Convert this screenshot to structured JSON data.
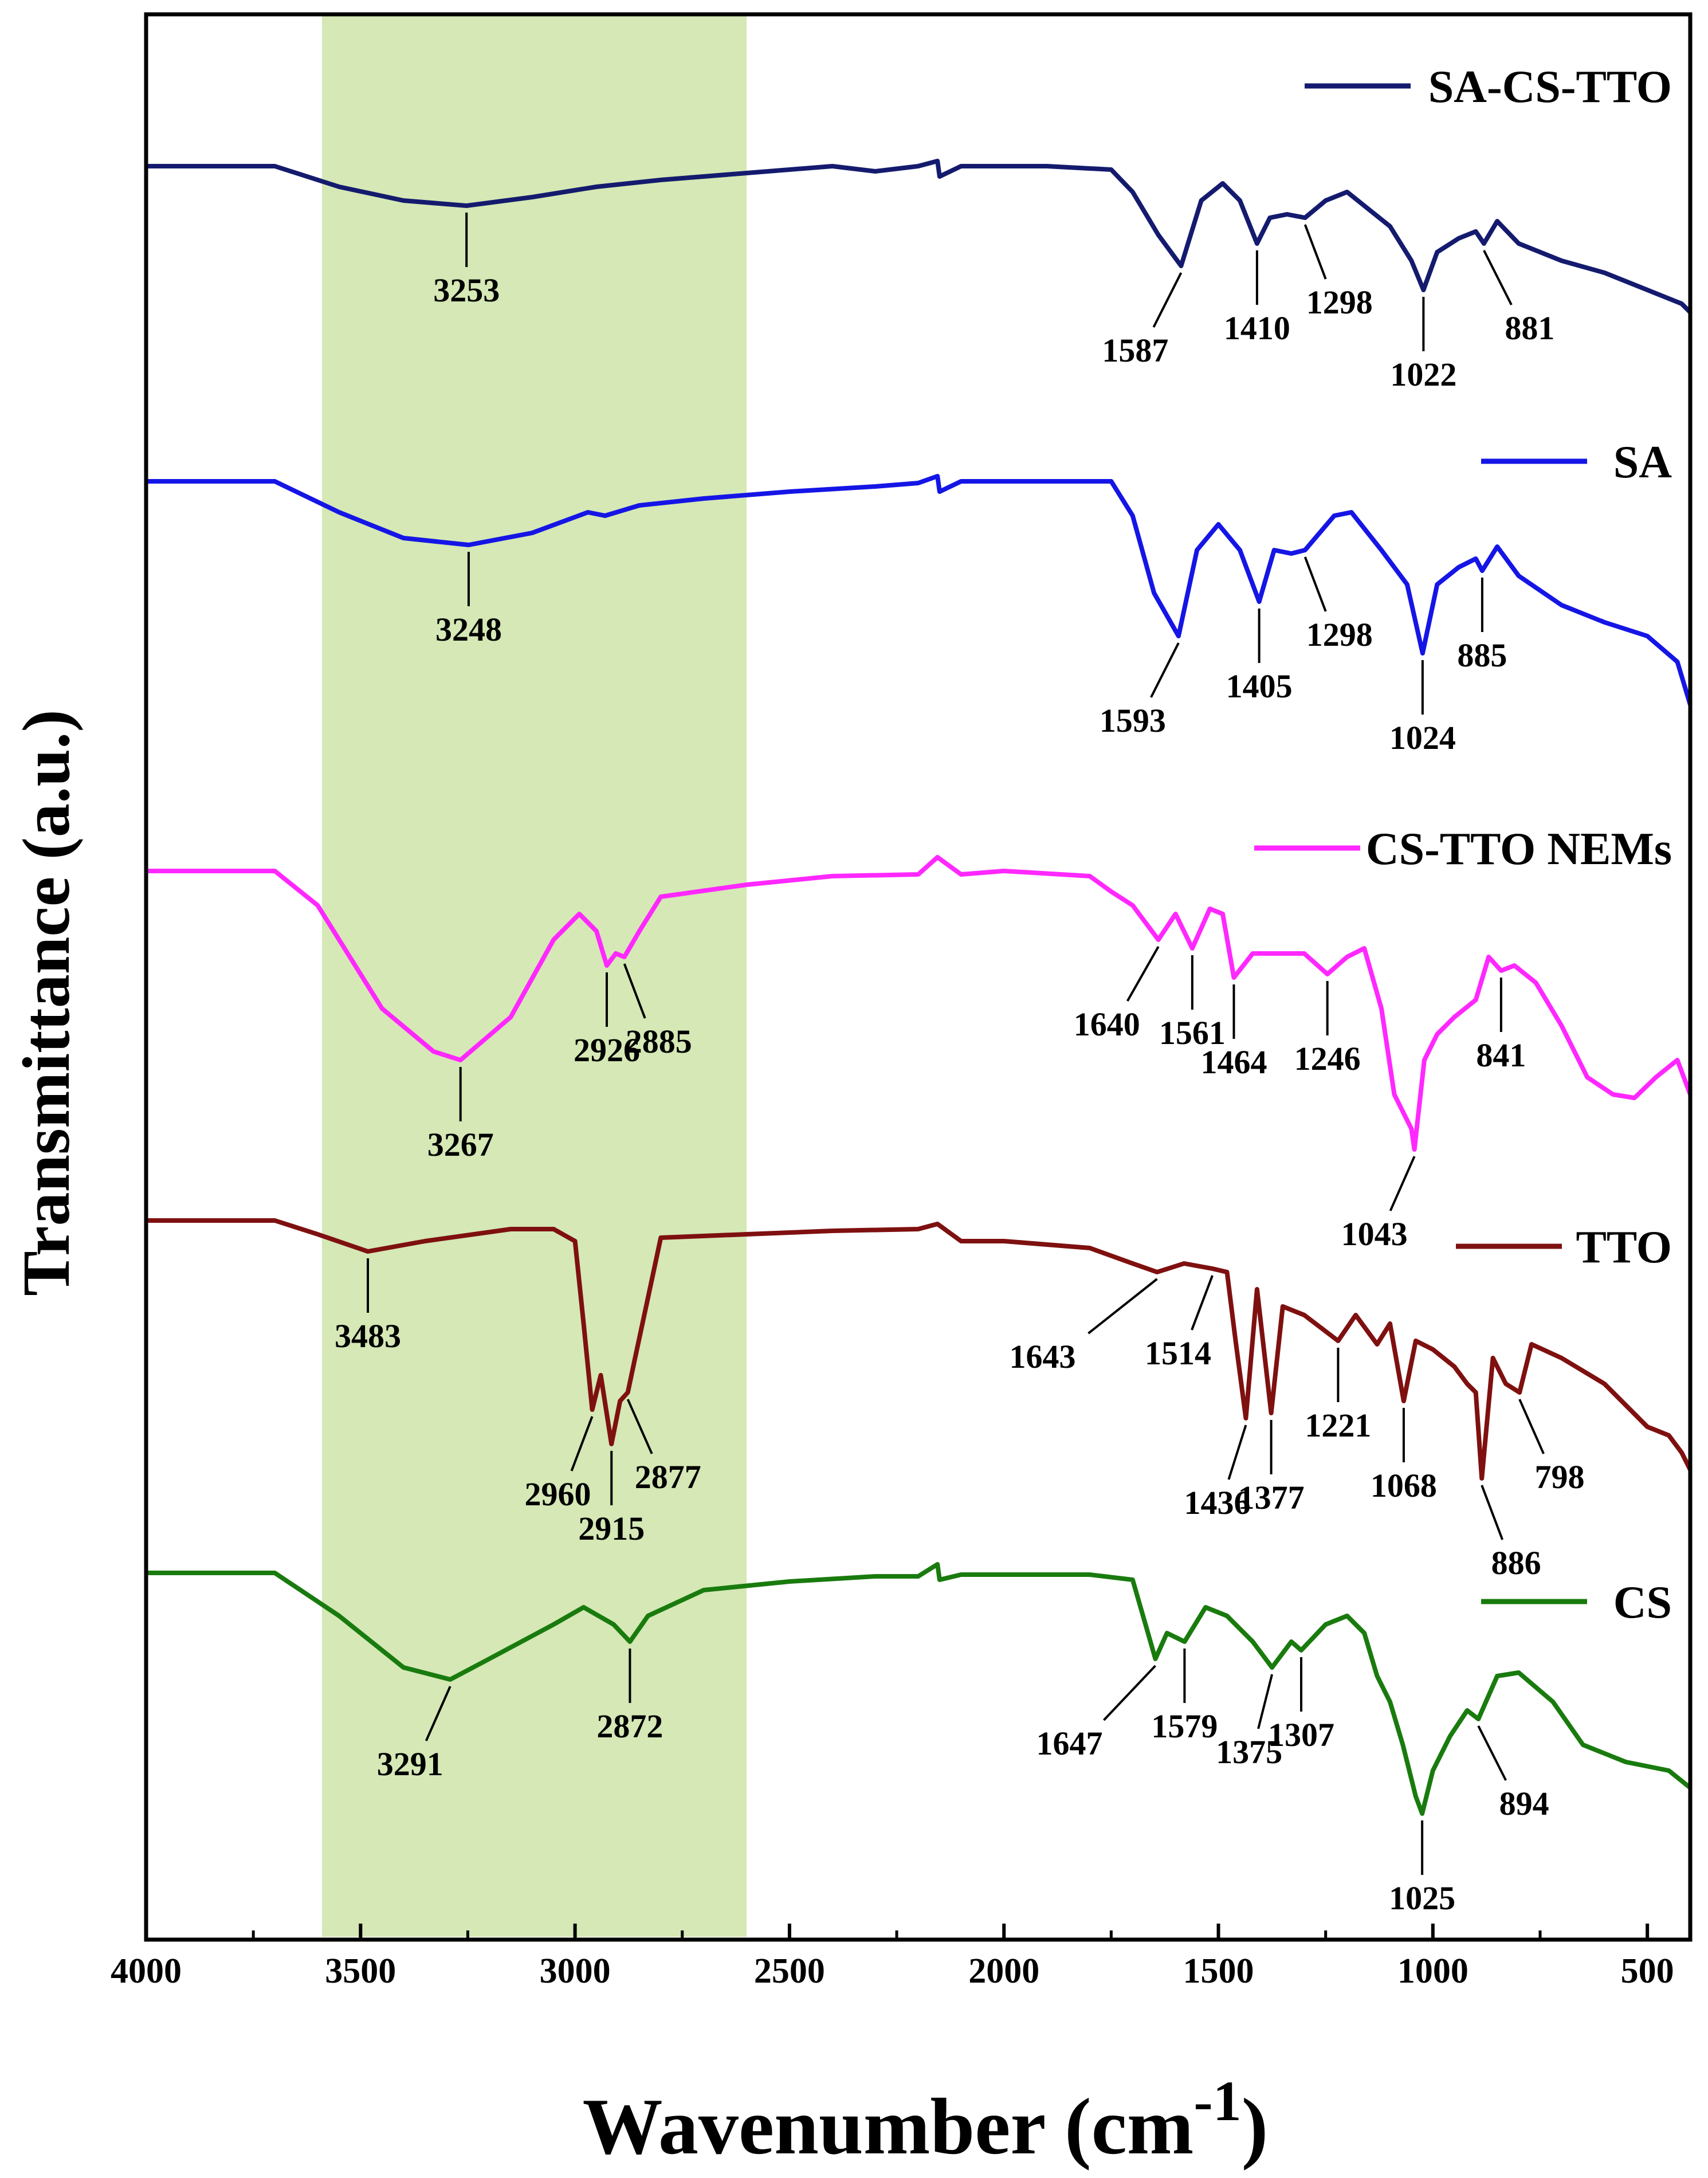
{
  "chart_data": {
    "type": "line",
    "xlabel": "Wavenumber (cm",
    "xlabel_sup": "-1",
    "xlabel_close": ")",
    "ylabel": "Transmittance (a.u.)",
    "xlim": [
      4000,
      400
    ],
    "x_reversed": true,
    "x_ticks": [
      4000,
      3500,
      3000,
      2500,
      2000,
      1500,
      1000,
      500
    ],
    "x_tick_labels": [
      "4000",
      "3500",
      "3000",
      "2500",
      "2000",
      "1500",
      "1000",
      "500"
    ],
    "highlight_band": {
      "from": 3590,
      "to": 2600,
      "color": "#d5e8b5"
    },
    "series": [
      {
        "name": "SA-CS-TTO",
        "color": "#141b6e",
        "offset": 4,
        "points": [
          [
            4000,
            0
          ],
          [
            3700,
            0
          ],
          [
            3550,
            -0.12
          ],
          [
            3400,
            -0.2
          ],
          [
            3253,
            -0.23
          ],
          [
            3100,
            -0.18
          ],
          [
            2950,
            -0.12
          ],
          [
            2800,
            -0.08
          ],
          [
            2600,
            -0.04
          ],
          [
            2400,
            0
          ],
          [
            2300,
            -0.03
          ],
          [
            2200,
            0.0
          ],
          [
            2155,
            0.03
          ],
          [
            2150,
            -0.06
          ],
          [
            2100,
            0.0
          ],
          [
            2000,
            0.0
          ],
          [
            1900,
            0.0
          ],
          [
            1750,
            -0.02
          ],
          [
            1700,
            -0.15
          ],
          [
            1640,
            -0.4
          ],
          [
            1587,
            -0.58
          ],
          [
            1540,
            -0.2
          ],
          [
            1490,
            -0.1
          ],
          [
            1450,
            -0.2
          ],
          [
            1410,
            -0.45
          ],
          [
            1380,
            -0.3
          ],
          [
            1340,
            -0.28
          ],
          [
            1298,
            -0.3
          ],
          [
            1250,
            -0.2
          ],
          [
            1200,
            -0.15
          ],
          [
            1150,
            -0.25
          ],
          [
            1100,
            -0.35
          ],
          [
            1050,
            -0.55
          ],
          [
            1022,
            -0.72
          ],
          [
            990,
            -0.5
          ],
          [
            940,
            -0.42
          ],
          [
            900,
            -0.38
          ],
          [
            881,
            -0.45
          ],
          [
            850,
            -0.32
          ],
          [
            800,
            -0.45
          ],
          [
            700,
            -0.55
          ],
          [
            600,
            -0.62
          ],
          [
            500,
            -0.72
          ],
          [
            420,
            -0.8
          ],
          [
            400,
            -0.85
          ]
        ]
      },
      {
        "name": "SA",
        "color": "#1515e6",
        "offset": 3,
        "points": [
          [
            4000,
            0
          ],
          [
            3700,
            0
          ],
          [
            3550,
            -0.18
          ],
          [
            3400,
            -0.33
          ],
          [
            3248,
            -0.37
          ],
          [
            3100,
            -0.3
          ],
          [
            2970,
            -0.18
          ],
          [
            2930,
            -0.2
          ],
          [
            2850,
            -0.14
          ],
          [
            2700,
            -0.1
          ],
          [
            2500,
            -0.06
          ],
          [
            2300,
            -0.03
          ],
          [
            2200,
            -0.01
          ],
          [
            2155,
            0.03
          ],
          [
            2150,
            -0.06
          ],
          [
            2100,
            0.0
          ],
          [
            1900,
            0.0
          ],
          [
            1750,
            0.0
          ],
          [
            1700,
            -0.2
          ],
          [
            1650,
            -0.65
          ],
          [
            1593,
            -0.9
          ],
          [
            1550,
            -0.4
          ],
          [
            1500,
            -0.25
          ],
          [
            1450,
            -0.4
          ],
          [
            1405,
            -0.7
          ],
          [
            1370,
            -0.4
          ],
          [
            1330,
            -0.42
          ],
          [
            1298,
            -0.4
          ],
          [
            1230,
            -0.2
          ],
          [
            1190,
            -0.18
          ],
          [
            1120,
            -0.4
          ],
          [
            1060,
            -0.6
          ],
          [
            1024,
            -1.0
          ],
          [
            990,
            -0.6
          ],
          [
            940,
            -0.5
          ],
          [
            900,
            -0.45
          ],
          [
            885,
            -0.52
          ],
          [
            850,
            -0.38
          ],
          [
            800,
            -0.55
          ],
          [
            700,
            -0.72
          ],
          [
            600,
            -0.82
          ],
          [
            500,
            -0.9
          ],
          [
            430,
            -1.05
          ],
          [
            400,
            -1.3
          ]
        ]
      },
      {
        "name": "CS-TTO NEMs",
        "color": "#ff28ff",
        "offset": 2,
        "points": [
          [
            4000,
            0
          ],
          [
            3700,
            0
          ],
          [
            3600,
            -0.2
          ],
          [
            3450,
            -0.8
          ],
          [
            3330,
            -1.05
          ],
          [
            3267,
            -1.1
          ],
          [
            3150,
            -0.85
          ],
          [
            3050,
            -0.4
          ],
          [
            2990,
            -0.25
          ],
          [
            2950,
            -0.35
          ],
          [
            2926,
            -0.55
          ],
          [
            2905,
            -0.48
          ],
          [
            2885,
            -0.5
          ],
          [
            2850,
            -0.35
          ],
          [
            2800,
            -0.15
          ],
          [
            2600,
            -0.08
          ],
          [
            2400,
            -0.03
          ],
          [
            2200,
            -0.02
          ],
          [
            2155,
            0.08
          ],
          [
            2100,
            -0.02
          ],
          [
            2000,
            0.0
          ],
          [
            1800,
            -0.03
          ],
          [
            1750,
            -0.12
          ],
          [
            1700,
            -0.2
          ],
          [
            1640,
            -0.4
          ],
          [
            1600,
            -0.25
          ],
          [
            1561,
            -0.45
          ],
          [
            1520,
            -0.22
          ],
          [
            1490,
            -0.25
          ],
          [
            1464,
            -0.62
          ],
          [
            1420,
            -0.48
          ],
          [
            1300,
            -0.48
          ],
          [
            1246,
            -0.6
          ],
          [
            1200,
            -0.5
          ],
          [
            1160,
            -0.45
          ],
          [
            1120,
            -0.8
          ],
          [
            1090,
            -1.3
          ],
          [
            1070,
            -1.4
          ],
          [
            1050,
            -1.5
          ],
          [
            1043,
            -1.62
          ],
          [
            1020,
            -1.1
          ],
          [
            990,
            -0.95
          ],
          [
            950,
            -0.85
          ],
          [
            900,
            -0.75
          ],
          [
            870,
            -0.5
          ],
          [
            841,
            -0.58
          ],
          [
            810,
            -0.55
          ],
          [
            760,
            -0.65
          ],
          [
            700,
            -0.9
          ],
          [
            640,
            -1.2
          ],
          [
            580,
            -1.3
          ],
          [
            530,
            -1.32
          ],
          [
            480,
            -1.2
          ],
          [
            430,
            -1.1
          ],
          [
            400,
            -1.3
          ]
        ]
      },
      {
        "name": "TTO",
        "color": "#7f1010",
        "offset": 1,
        "points": [
          [
            4000,
            0
          ],
          [
            3700,
            0
          ],
          [
            3600,
            -0.08
          ],
          [
            3483,
            -0.18
          ],
          [
            3350,
            -0.12
          ],
          [
            3150,
            -0.05
          ],
          [
            3050,
            -0.05
          ],
          [
            3000,
            -0.12
          ],
          [
            2980,
            -0.6
          ],
          [
            2960,
            -1.1
          ],
          [
            2940,
            -0.9
          ],
          [
            2915,
            -1.3
          ],
          [
            2895,
            -1.05
          ],
          [
            2877,
            -1.0
          ],
          [
            2860,
            -0.8
          ],
          [
            2830,
            -0.45
          ],
          [
            2800,
            -0.1
          ],
          [
            2600,
            -0.08
          ],
          [
            2400,
            -0.06
          ],
          [
            2200,
            -0.05
          ],
          [
            2155,
            -0.02
          ],
          [
            2100,
            -0.12
          ],
          [
            2000,
            -0.12
          ],
          [
            1800,
            -0.16
          ],
          [
            1700,
            -0.25
          ],
          [
            1643,
            -0.3
          ],
          [
            1580,
            -0.25
          ],
          [
            1514,
            -0.28
          ],
          [
            1480,
            -0.3
          ],
          [
            1460,
            -0.7
          ],
          [
            1436,
            -1.15
          ],
          [
            1410,
            -0.4
          ],
          [
            1377,
            -1.12
          ],
          [
            1350,
            -0.5
          ],
          [
            1300,
            -0.55
          ],
          [
            1221,
            -0.7
          ],
          [
            1180,
            -0.55
          ],
          [
            1130,
            -0.72
          ],
          [
            1100,
            -0.6
          ],
          [
            1068,
            -1.05
          ],
          [
            1040,
            -0.7
          ],
          [
            1000,
            -0.75
          ],
          [
            950,
            -0.85
          ],
          [
            920,
            -0.95
          ],
          [
            900,
            -1.0
          ],
          [
            886,
            -1.5
          ],
          [
            860,
            -0.8
          ],
          [
            830,
            -0.95
          ],
          [
            798,
            -1.0
          ],
          [
            770,
            -0.72
          ],
          [
            700,
            -0.8
          ],
          [
            600,
            -0.95
          ],
          [
            500,
            -1.2
          ],
          [
            450,
            -1.25
          ],
          [
            420,
            -1.35
          ],
          [
            400,
            -1.45
          ]
        ]
      },
      {
        "name": "CS",
        "color": "#197b0e",
        "offset": 0,
        "points": [
          [
            4000,
            0
          ],
          [
            3700,
            0
          ],
          [
            3550,
            -0.25
          ],
          [
            3400,
            -0.55
          ],
          [
            3291,
            -0.62
          ],
          [
            3200,
            -0.5
          ],
          [
            3050,
            -0.3
          ],
          [
            2980,
            -0.2
          ],
          [
            2910,
            -0.3
          ],
          [
            2872,
            -0.4
          ],
          [
            2830,
            -0.25
          ],
          [
            2700,
            -0.1
          ],
          [
            2500,
            -0.05
          ],
          [
            2300,
            -0.02
          ],
          [
            2200,
            -0.02
          ],
          [
            2155,
            0.05
          ],
          [
            2150,
            -0.04
          ],
          [
            2100,
            -0.01
          ],
          [
            2000,
            -0.01
          ],
          [
            1800,
            -0.01
          ],
          [
            1700,
            -0.04
          ],
          [
            1670,
            -0.3
          ],
          [
            1647,
            -0.5
          ],
          [
            1620,
            -0.35
          ],
          [
            1579,
            -0.4
          ],
          [
            1530,
            -0.2
          ],
          [
            1480,
            -0.25
          ],
          [
            1420,
            -0.4
          ],
          [
            1375,
            -0.55
          ],
          [
            1330,
            -0.4
          ],
          [
            1307,
            -0.45
          ],
          [
            1250,
            -0.3
          ],
          [
            1200,
            -0.25
          ],
          [
            1160,
            -0.35
          ],
          [
            1130,
            -0.6
          ],
          [
            1100,
            -0.75
          ],
          [
            1070,
            -1.0
          ],
          [
            1040,
            -1.3
          ],
          [
            1025,
            -1.4
          ],
          [
            1000,
            -1.15
          ],
          [
            960,
            -0.95
          ],
          [
            920,
            -0.8
          ],
          [
            894,
            -0.85
          ],
          [
            850,
            -0.6
          ],
          [
            800,
            -0.58
          ],
          [
            720,
            -0.75
          ],
          [
            650,
            -1.0
          ],
          [
            550,
            -1.1
          ],
          [
            450,
            -1.15
          ],
          [
            400,
            -1.25
          ]
        ]
      }
    ],
    "peak_annotations": [
      {
        "series": "SA-CS-TTO",
        "label": "3253",
        "x": 3253
      },
      {
        "series": "SA-CS-TTO",
        "label": "1587",
        "x": 1587
      },
      {
        "series": "SA-CS-TTO",
        "label": "1410",
        "x": 1410
      },
      {
        "series": "SA-CS-TTO",
        "label": "1298",
        "x": 1298
      },
      {
        "series": "SA-CS-TTO",
        "label": "1022",
        "x": 1022
      },
      {
        "series": "SA-CS-TTO",
        "label": "881",
        "x": 881
      },
      {
        "series": "SA",
        "label": "3248",
        "x": 3248
      },
      {
        "series": "SA",
        "label": "1593",
        "x": 1593
      },
      {
        "series": "SA",
        "label": "1405",
        "x": 1405
      },
      {
        "series": "SA",
        "label": "1298",
        "x": 1298
      },
      {
        "series": "SA",
        "label": "1024",
        "x": 1024
      },
      {
        "series": "SA",
        "label": "885",
        "x": 885
      },
      {
        "series": "CS-TTO NEMs",
        "label": "3267",
        "x": 3267
      },
      {
        "series": "CS-TTO NEMs",
        "label": "2926",
        "x": 2926
      },
      {
        "series": "CS-TTO NEMs",
        "label": "2885",
        "x": 2885
      },
      {
        "series": "CS-TTO NEMs",
        "label": "1640",
        "x": 1640
      },
      {
        "series": "CS-TTO NEMs",
        "label": "1561",
        "x": 1561
      },
      {
        "series": "CS-TTO NEMs",
        "label": "1464",
        "x": 1464
      },
      {
        "series": "CS-TTO NEMs",
        "label": "1246",
        "x": 1246
      },
      {
        "series": "CS-TTO NEMs",
        "label": "1043",
        "x": 1043
      },
      {
        "series": "CS-TTO NEMs",
        "label": "841",
        "x": 841
      },
      {
        "series": "TTO",
        "label": "3483",
        "x": 3483
      },
      {
        "series": "TTO",
        "label": "2960",
        "x": 2960
      },
      {
        "series": "TTO",
        "label": "2915",
        "x": 2915
      },
      {
        "series": "TTO",
        "label": "2877",
        "x": 2877
      },
      {
        "series": "TTO",
        "label": "1643",
        "x": 1643
      },
      {
        "series": "TTO",
        "label": "1514",
        "x": 1514
      },
      {
        "series": "TTO",
        "label": "1436",
        "x": 1436
      },
      {
        "series": "TTO",
        "label": "1377",
        "x": 1377
      },
      {
        "series": "TTO",
        "label": "1221",
        "x": 1221
      },
      {
        "series": "TTO",
        "label": "1068",
        "x": 1068
      },
      {
        "series": "TTO",
        "label": "886",
        "x": 886
      },
      {
        "series": "TTO",
        "label": "798",
        "x": 798
      },
      {
        "series": "CS",
        "label": "3291",
        "x": 3291
      },
      {
        "series": "CS",
        "label": "2872",
        "x": 2872
      },
      {
        "series": "CS",
        "label": "1647",
        "x": 1647
      },
      {
        "series": "CS",
        "label": "1579",
        "x": 1579
      },
      {
        "series": "CS",
        "label": "1375",
        "x": 1375
      },
      {
        "series": "CS",
        "label": "1307",
        "x": 1307
      },
      {
        "series": "CS",
        "label": "1025",
        "x": 1025
      },
      {
        "series": "CS",
        "label": "894",
        "x": 894
      }
    ]
  }
}
